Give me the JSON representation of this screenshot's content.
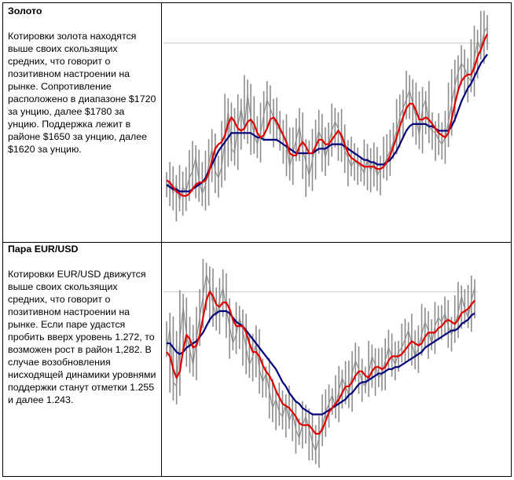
{
  "sections": [
    {
      "title": "Золото",
      "body": "Котировки золота находятся выше своих скользящих средних, что говорит о позитивном настроении на рынке. Сопротивление расположено в диапазоне $1720 за унцию, далее $1780 за унцию. Поддержка лежит в районе $1650 за унцию, далее $1620 за унцию."
    },
    {
      "title": "Пара EUR/USD",
      "body": "Котировки EUR/USD движутся выше своих скользящих средних, что говорит о позитивном настроении на рынке. Если паре удастся пробить вверх уровень 1.272, то возможен рост в район 1,282. В случае возобновления нисходящей динамики уровнями поддержки станут отметки 1.255 и далее 1.243."
    }
  ],
  "colors": {
    "price": "#8c8c8c",
    "fast_ma": "#e00000",
    "slow_ma": "#00007a",
    "level": "#c8c8c8"
  },
  "chart_data": [
    {
      "type": "line",
      "xlim": [
        0,
        100
      ],
      "ylim": [
        0,
        100
      ],
      "reference_level": 85,
      "series": [
        {
          "role": "price",
          "values": [
            20,
            24,
            18,
            22,
            15,
            21,
            19,
            25,
            28,
            34,
            24,
            18,
            22,
            31,
            38,
            28,
            25,
            30,
            41,
            55,
            38,
            36,
            48,
            56,
            47,
            62,
            52,
            44,
            40,
            45,
            53,
            60,
            56,
            52,
            48,
            46,
            44,
            40,
            30,
            36,
            42,
            48,
            38,
            32,
            26,
            33,
            40,
            46,
            42,
            34,
            40,
            46,
            50,
            47,
            42,
            37,
            34,
            30,
            33,
            31,
            30,
            27,
            34,
            28,
            32,
            26,
            29,
            30,
            34,
            37,
            41,
            46,
            52,
            56,
            60,
            64,
            58,
            52,
            44,
            56,
            60,
            48,
            46,
            45,
            42,
            40,
            43,
            50,
            58,
            66,
            72,
            76,
            74,
            70,
            68,
            78,
            86,
            82,
            90,
            92
          ]
        },
        {
          "role": "fast_ma",
          "values": [
            24,
            23,
            21,
            19,
            18,
            17,
            17,
            18,
            20,
            22,
            23,
            23,
            24,
            27,
            33,
            38,
            40,
            41,
            44,
            49,
            52,
            50,
            47,
            46,
            47,
            50,
            51,
            49,
            45,
            43,
            44,
            47,
            51,
            52,
            50,
            47,
            44,
            41,
            36,
            35,
            35,
            39,
            41,
            39,
            36,
            36,
            39,
            42,
            42,
            40,
            40,
            42,
            44,
            46,
            44,
            40,
            36,
            34,
            33,
            32,
            31,
            30,
            30,
            30,
            30,
            29,
            29,
            30,
            32,
            35,
            39,
            43,
            48,
            52,
            56,
            58,
            58,
            55,
            51,
            51,
            52,
            51,
            49,
            47,
            45,
            44,
            43,
            45,
            51,
            58,
            64,
            68,
            70,
            71,
            71,
            74,
            79,
            82,
            86,
            89
          ]
        },
        {
          "role": "slow_ma",
          "values": [
            22,
            21,
            20,
            20,
            19,
            19,
            19,
            19,
            20,
            21,
            22,
            23,
            25,
            28,
            31,
            34,
            37,
            39,
            41,
            43,
            45,
            45,
            45,
            45,
            45,
            45,
            45,
            44,
            43,
            43,
            42,
            42,
            42,
            42,
            42,
            41,
            40,
            39,
            38,
            37,
            36,
            36,
            36,
            36,
            36,
            36,
            37,
            38,
            38,
            38,
            39,
            40,
            40,
            40,
            40,
            39,
            38,
            37,
            36,
            35,
            34,
            33,
            33,
            32,
            32,
            31,
            31,
            31,
            32,
            33,
            35,
            37,
            40,
            43,
            46,
            48,
            49,
            49,
            49,
            49,
            49,
            48,
            48,
            47,
            46,
            46,
            46,
            46,
            48,
            51,
            55,
            59,
            62,
            65,
            67,
            70,
            73,
            76,
            78,
            80
          ]
        }
      ]
    },
    {
      "type": "line",
      "xlim": [
        0,
        100
      ],
      "ylim": [
        0,
        100
      ],
      "reference_level": 82,
      "series": [
        {
          "role": "price",
          "values": [
            55,
            65,
            40,
            38,
            60,
            75,
            62,
            55,
            48,
            60,
            70,
            80,
            90,
            85,
            76,
            70,
            78,
            84,
            74,
            66,
            58,
            62,
            70,
            64,
            56,
            48,
            52,
            58,
            46,
            40,
            44,
            36,
            28,
            32,
            26,
            24,
            30,
            22,
            26,
            18,
            14,
            20,
            24,
            18,
            12,
            8,
            14,
            20,
            26,
            30,
            34,
            28,
            36,
            42,
            38,
            34,
            44,
            50,
            46,
            40,
            38,
            44,
            52,
            48,
            42,
            44,
            50,
            56,
            52,
            48,
            54,
            56,
            60,
            64,
            58,
            52,
            56,
            62,
            68,
            64,
            58,
            66,
            70,
            68,
            72,
            66,
            62,
            66,
            72,
            80,
            74,
            70,
            78,
            84
          ]
        },
        {
          "role": "fast_ma",
          "values": [
            54,
            52,
            46,
            42,
            45,
            55,
            62,
            60,
            56,
            57,
            62,
            70,
            78,
            82,
            80,
            76,
            75,
            77,
            77,
            74,
            69,
            66,
            66,
            66,
            63,
            58,
            54,
            54,
            52,
            48,
            45,
            43,
            40,
            36,
            33,
            30,
            29,
            28,
            26,
            24,
            21,
            20,
            20,
            20,
            18,
            16,
            16,
            18,
            22,
            26,
            28,
            30,
            32,
            35,
            38,
            38,
            40,
            43,
            45,
            45,
            43,
            42,
            45,
            47,
            47,
            46,
            47,
            50,
            52,
            52,
            52,
            53,
            55,
            57,
            59,
            58,
            57,
            58,
            61,
            63,
            63,
            63,
            65,
            66,
            68,
            69,
            68,
            67,
            69,
            72,
            73,
            74,
            76,
            78
          ]
        },
        {
          "role": "slow_ma",
          "values": [
            58,
            58,
            56,
            54,
            53,
            54,
            56,
            57,
            58,
            59,
            61,
            63,
            66,
            69,
            71,
            72,
            73,
            73,
            73,
            72,
            70,
            68,
            67,
            66,
            64,
            62,
            60,
            58,
            56,
            54,
            52,
            50,
            48,
            46,
            43,
            40,
            38,
            35,
            33,
            31,
            30,
            28,
            27,
            26,
            25,
            25,
            25,
            25,
            26,
            27,
            28,
            29,
            30,
            31,
            32,
            34,
            35,
            37,
            39,
            40,
            40,
            41,
            42,
            43,
            44,
            44,
            45,
            46,
            46,
            47,
            47,
            48,
            49,
            50,
            51,
            52,
            53,
            54,
            56,
            57,
            58,
            59,
            60,
            61,
            62,
            63,
            64,
            64,
            65,
            67,
            68,
            69,
            71,
            72
          ]
        }
      ]
    }
  ]
}
